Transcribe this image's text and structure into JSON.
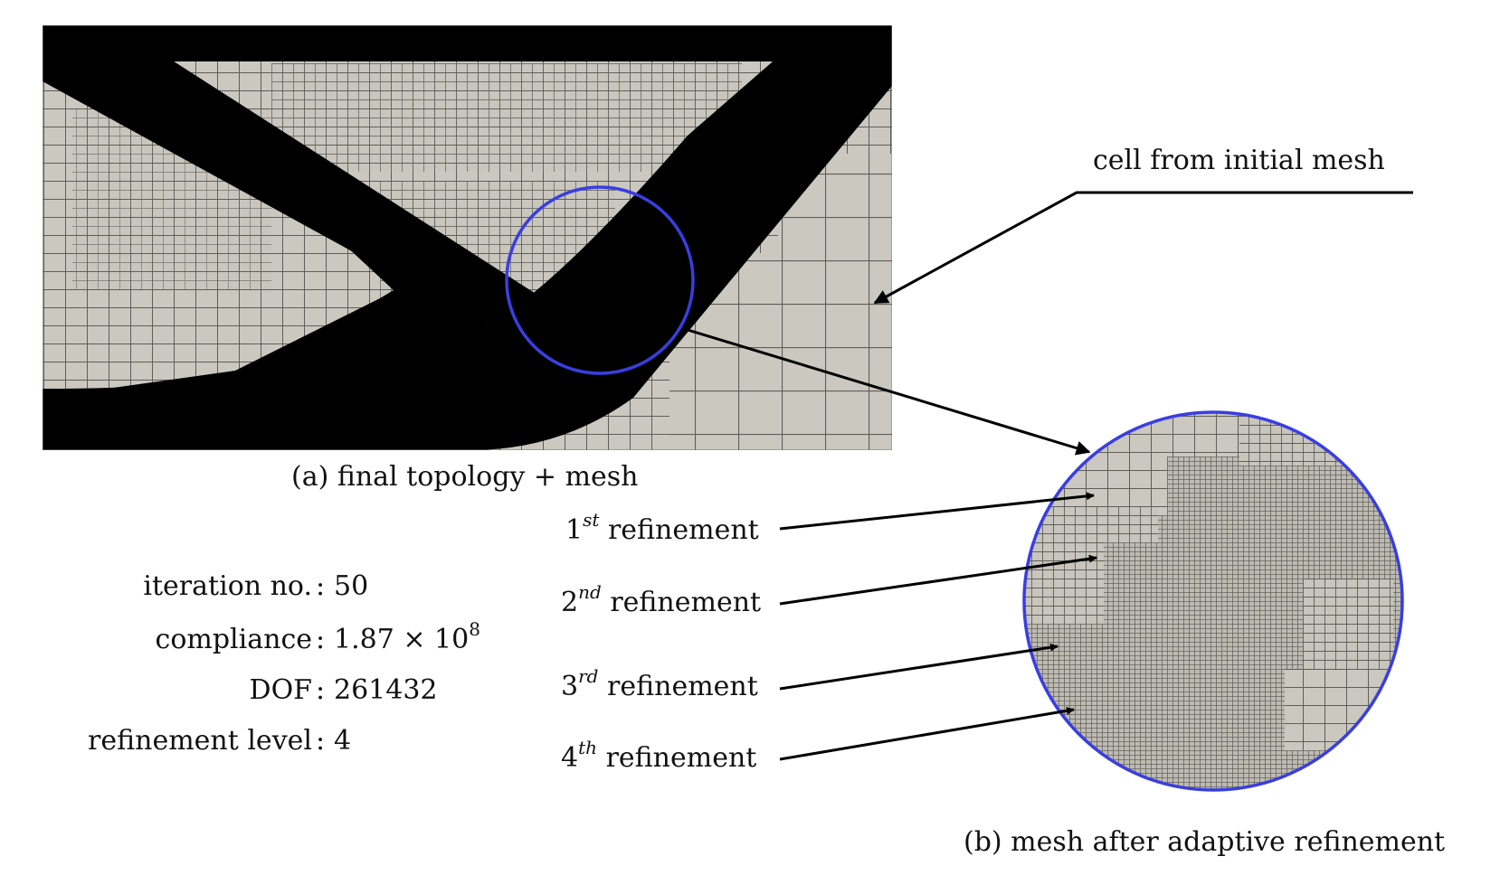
{
  "panel_a": {
    "caption": "(a) final topology + mesh"
  },
  "panel_b": {
    "caption": "(b) mesh after adaptive refinement",
    "callout": "cell from initial mesh"
  },
  "refinements": [
    {
      "num": "1",
      "sup": "st",
      "label": "refinement"
    },
    {
      "num": "2",
      "sup": "nd",
      "label": "refinement"
    },
    {
      "num": "3",
      "sup": "rd",
      "label": "refinement"
    },
    {
      "num": "4",
      "sup": "th",
      "label": "refinement"
    }
  ],
  "stats": [
    {
      "label": "iteration no.",
      "value": "50"
    },
    {
      "label": "compliance",
      "value": "1.87 × 10",
      "sup": "8"
    },
    {
      "label": "DOF",
      "value": "261432"
    },
    {
      "label": "refinement level",
      "value": "4"
    }
  ],
  "colors": {
    "mesh_fill": "#cbc8c0",
    "mesh_line": "#55554f",
    "material": "#000000",
    "highlight_circle": "#3a3ee0",
    "arrow": "#000000"
  }
}
